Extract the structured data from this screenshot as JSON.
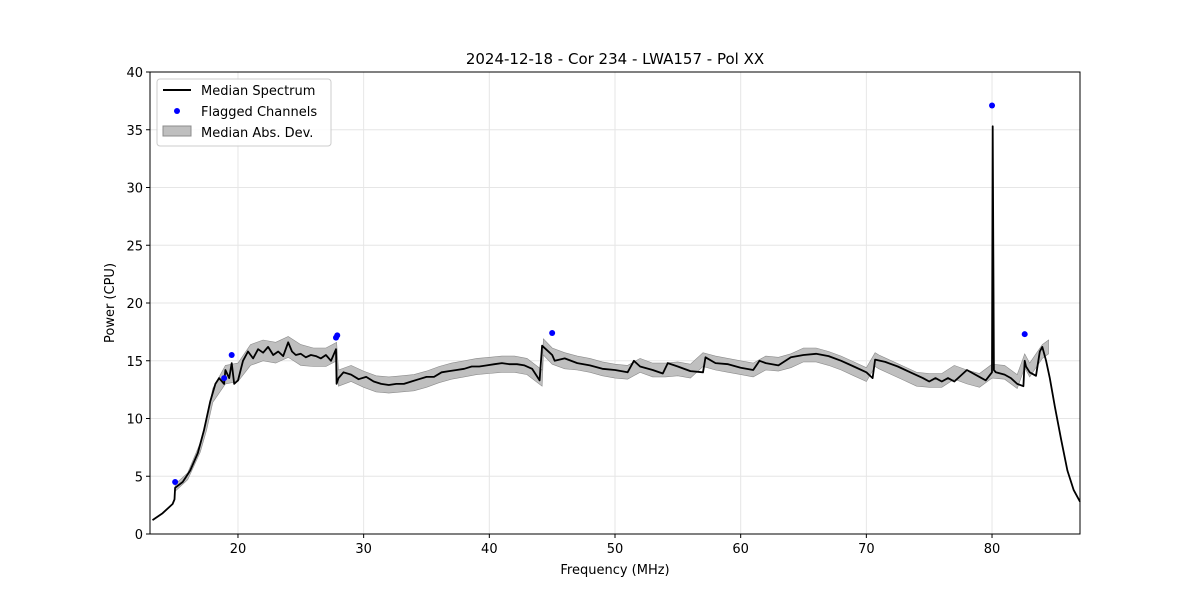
{
  "chart_data": {
    "type": "line",
    "title": "2024-12-18 - Cor 234 - LWA157 - Pol XX",
    "xlabel": "Frequency (MHz)",
    "ylabel": "Power (CPU)",
    "xlim": [
      13.0,
      87.0
    ],
    "ylim": [
      0,
      40
    ],
    "xticks": [
      20,
      30,
      40,
      50,
      60,
      70,
      80
    ],
    "yticks": [
      0,
      5,
      10,
      15,
      20,
      25,
      30,
      35,
      40
    ],
    "grid": true,
    "legend_position": "upper-left",
    "legend": [
      {
        "label": "Median Spectrum",
        "kind": "line"
      },
      {
        "label": "Flagged Channels",
        "kind": "marker"
      },
      {
        "label": "Median Abs. Dev.",
        "kind": "patch"
      }
    ],
    "colors": {
      "median": "#000000",
      "flagged": "#0000ff",
      "mad_fill": "#bfbfbf",
      "mad_edge": "#8c8c8c",
      "grid": "#e6e6e6"
    },
    "median_spectrum": {
      "x": [
        13.2,
        14.0,
        14.8,
        14.95,
        15.0,
        15.6,
        16.2,
        16.8,
        17.3,
        17.8,
        18.2,
        18.5,
        18.9,
        19.0,
        19.3,
        19.5,
        19.7,
        20.0,
        20.4,
        20.8,
        21.2,
        21.6,
        22.0,
        22.4,
        22.8,
        23.2,
        23.6,
        24.0,
        24.3,
        24.6,
        25.0,
        25.4,
        25.8,
        26.2,
        26.6,
        27.0,
        27.4,
        27.8,
        27.85,
        28.0,
        28.4,
        29.0,
        29.6,
        30.2,
        30.8,
        31.4,
        32.0,
        32.6,
        33.2,
        33.8,
        34.4,
        35.0,
        35.6,
        36.2,
        36.8,
        37.4,
        38.0,
        38.6,
        39.2,
        39.8,
        40.4,
        41.0,
        41.6,
        42.2,
        42.8,
        43.4,
        44.0,
        44.2,
        44.5,
        45.0,
        45.2,
        46.0,
        47.0,
        48.0,
        49.0,
        50.0,
        51.0,
        51.5,
        52.0,
        53.0,
        53.8,
        54.2,
        55.0,
        56.0,
        57.0,
        57.2,
        58.0,
        59.0,
        60.0,
        61.0,
        61.5,
        62.0,
        63.0,
        64.0,
        65.0,
        66.0,
        67.0,
        68.0,
        69.0,
        70.0,
        70.5,
        70.7,
        71.5,
        72.5,
        73.5,
        74.5,
        75.0,
        75.5,
        76.0,
        76.5,
        77.0,
        78.0,
        79.0,
        79.5,
        80.0,
        80.05,
        80.15,
        80.3,
        81.0,
        81.5,
        82.0,
        82.5,
        82.6,
        82.7,
        83.0,
        83.5,
        83.8,
        84.0,
        84.3,
        84.6,
        85.0,
        85.5,
        86.0,
        86.5,
        87.0
      ],
      "y": [
        1.2,
        1.8,
        2.6,
        3.0,
        4.0,
        4.5,
        5.5,
        7.0,
        9.0,
        11.5,
        13.0,
        13.5,
        13.0,
        14.2,
        13.5,
        14.8,
        13.0,
        13.3,
        15.0,
        15.8,
        15.2,
        16.0,
        15.7,
        16.2,
        15.5,
        15.8,
        15.4,
        16.6,
        15.8,
        15.5,
        15.6,
        15.3,
        15.5,
        15.4,
        15.2,
        15.5,
        15.0,
        16.0,
        13.0,
        13.5,
        14.0,
        13.8,
        13.4,
        13.6,
        13.2,
        13.0,
        12.9,
        13.0,
        13.0,
        13.2,
        13.4,
        13.6,
        13.6,
        14.0,
        14.1,
        14.2,
        14.3,
        14.5,
        14.5,
        14.6,
        14.7,
        14.8,
        14.7,
        14.7,
        14.6,
        14.3,
        13.3,
        16.3,
        16.0,
        15.5,
        15.0,
        15.2,
        14.8,
        14.6,
        14.3,
        14.2,
        14.0,
        15.0,
        14.5,
        14.2,
        13.9,
        14.8,
        14.5,
        14.1,
        14.0,
        15.3,
        14.8,
        14.7,
        14.4,
        14.2,
        15.0,
        14.8,
        14.6,
        15.3,
        15.5,
        15.6,
        15.4,
        15.0,
        14.5,
        14.0,
        13.5,
        15.1,
        14.9,
        14.5,
        14.0,
        13.5,
        13.2,
        13.5,
        13.2,
        13.5,
        13.2,
        14.2,
        13.6,
        13.3,
        14.0,
        35.3,
        14.2,
        14.0,
        13.8,
        13.5,
        13.0,
        12.8,
        15.0,
        14.5,
        14.0,
        13.7,
        15.8,
        16.2,
        15.0,
        13.5,
        11.0,
        8.2,
        5.5,
        3.8,
        2.8
      ]
    },
    "mad_band": {
      "x": [
        15.0,
        16.0,
        17.0,
        17.5,
        18.0,
        19.0,
        20.0,
        21.0,
        22.0,
        23.0,
        24.0,
        25.0,
        26.0,
        27.0,
        27.85,
        28.0,
        29.0,
        30.0,
        31.0,
        32.0,
        33.0,
        34.0,
        35.0,
        36.0,
        37.0,
        38.0,
        39.0,
        40.0,
        41.0,
        42.0,
        43.0,
        44.2,
        44.3,
        45.0,
        46.0,
        47.0,
        48.0,
        49.0,
        50.0,
        51.0,
        52.0,
        53.0,
        54.0,
        55.0,
        56.0,
        57.0,
        58.0,
        59.0,
        60.0,
        61.0,
        62.0,
        63.0,
        64.0,
        65.0,
        66.0,
        67.0,
        68.0,
        69.0,
        70.0,
        70.7,
        71.0,
        72.0,
        73.0,
        74.0,
        75.0,
        76.0,
        77.0,
        78.0,
        79.0,
        80.0,
        81.0,
        82.0,
        82.6,
        83.0,
        84.0,
        84.5
      ],
      "center": [
        4.0,
        5.0,
        7.5,
        9.5,
        12.0,
        13.8,
        14.0,
        15.5,
        15.9,
        15.7,
        16.2,
        15.5,
        15.3,
        15.3,
        15.8,
        13.5,
        13.9,
        13.4,
        13.0,
        12.9,
        13.0,
        13.1,
        13.4,
        13.8,
        14.1,
        14.3,
        14.5,
        14.6,
        14.7,
        14.7,
        14.5,
        13.5,
        16.2,
        15.4,
        15.0,
        14.8,
        14.6,
        14.3,
        14.1,
        14.0,
        14.6,
        14.2,
        14.2,
        14.3,
        14.1,
        15.1,
        14.8,
        14.6,
        14.4,
        14.2,
        14.8,
        14.7,
        15.0,
        15.5,
        15.5,
        15.2,
        14.8,
        14.3,
        13.8,
        15.1,
        14.9,
        14.4,
        13.9,
        13.4,
        13.3,
        13.3,
        14.0,
        13.6,
        13.3,
        14.1,
        14.0,
        13.2,
        15.0,
        14.2,
        15.8,
        16.2
      ],
      "halfwidth": [
        0.3,
        0.3,
        0.4,
        0.5,
        0.6,
        0.8,
        0.8,
        0.9,
        0.9,
        0.9,
        0.9,
        0.9,
        0.8,
        0.8,
        0.8,
        0.7,
        0.7,
        0.7,
        0.7,
        0.7,
        0.7,
        0.7,
        0.7,
        0.7,
        0.7,
        0.7,
        0.7,
        0.7,
        0.7,
        0.7,
        0.7,
        0.7,
        0.7,
        0.7,
        0.7,
        0.6,
        0.6,
        0.6,
        0.6,
        0.6,
        0.6,
        0.6,
        0.6,
        0.6,
        0.6,
        0.6,
        0.6,
        0.6,
        0.6,
        0.6,
        0.6,
        0.6,
        0.6,
        0.6,
        0.6,
        0.6,
        0.6,
        0.6,
        0.6,
        0.6,
        0.6,
        0.6,
        0.6,
        0.6,
        0.6,
        0.6,
        0.6,
        0.6,
        0.6,
        0.6,
        0.6,
        0.6,
        0.6,
        0.6,
        0.6,
        0.6
      ]
    },
    "flagged_channels": {
      "x": [
        15.0,
        18.9,
        19.5,
        27.8,
        27.9,
        45.0,
        80.0,
        82.6
      ],
      "y": [
        4.5,
        13.5,
        15.5,
        17.0,
        17.2,
        17.4,
        37.1,
        17.3
      ]
    }
  }
}
